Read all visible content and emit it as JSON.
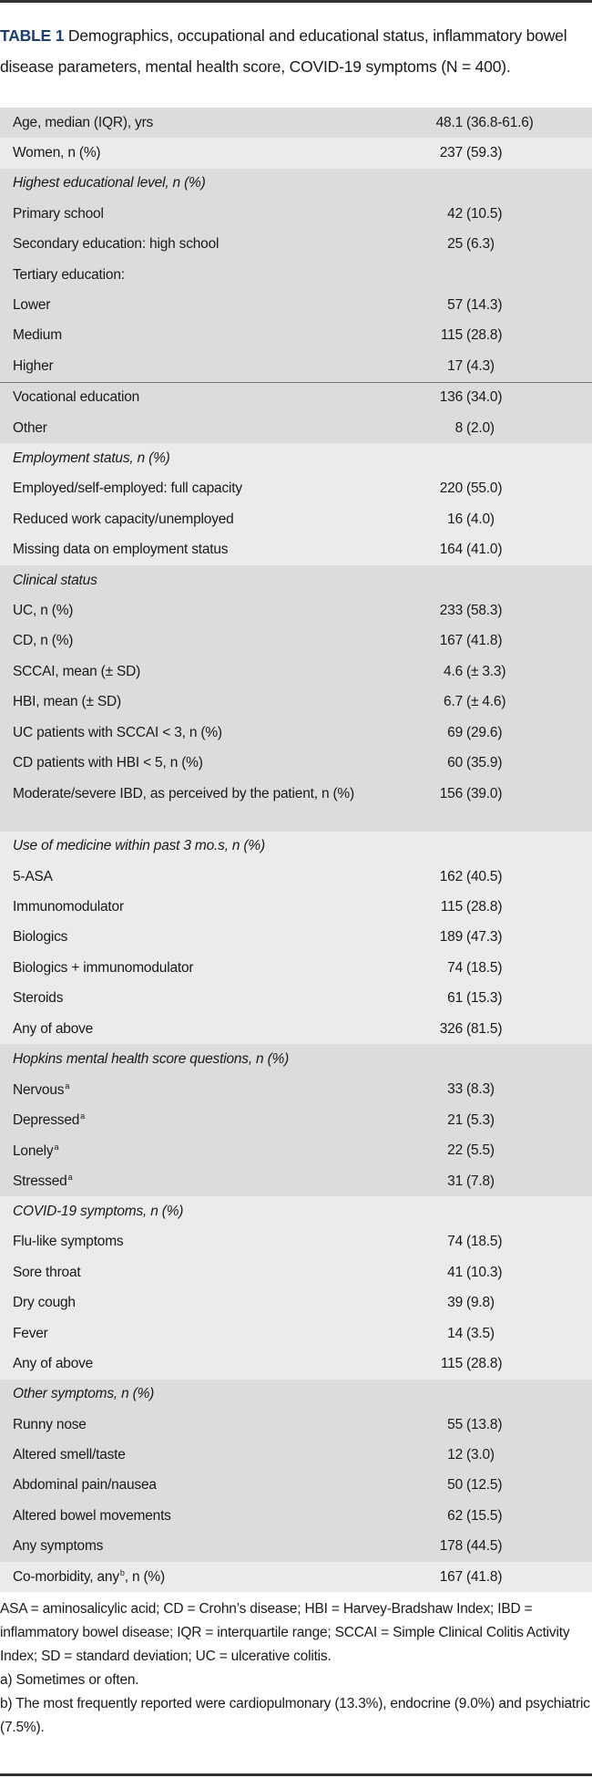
{
  "caption": {
    "label": "TABLE 1",
    "text": " Demographics, occupational and educational status, inflammatory bowel disease parameters, mental health score, COVID-19 symptoms (N = 400)."
  },
  "colors": {
    "title": "#1f3f72",
    "shade_dark": "#dcdcdc",
    "shade_light": "#ebebeb"
  },
  "sections": [
    {
      "shade": "dark",
      "rows": [
        {
          "label": "Age, median (IQR), yrs",
          "n": "48.1",
          "rest": "(36.8-61.6)"
        }
      ]
    },
    {
      "shade": "light",
      "rows": [
        {
          "label": "Women, n (%)",
          "n": "237",
          "rest": "(59.3)"
        }
      ]
    },
    {
      "shade": "dark",
      "rows": [
        {
          "label": "Highest educational level, n (%)",
          "italic": true
        },
        {
          "label": "Primary school",
          "n": "42",
          "rest": "(10.5)"
        },
        {
          "label": "Secondary education: high school",
          "n": "25",
          "rest": "(6.3)"
        },
        {
          "label": "Tertiary education:"
        },
        {
          "label": "Lower",
          "n": "57",
          "rest": "(14.3)"
        },
        {
          "label": "Medium",
          "n": "115",
          "rest": "(28.8)"
        },
        {
          "label": "Higher",
          "n": "17",
          "rest": "(4.3)"
        },
        {
          "label": "Vocational education",
          "n": "136",
          "rest": "(34.0)",
          "divider": true
        },
        {
          "label": "Other",
          "n": "8",
          "rest": "(2.0)"
        }
      ]
    },
    {
      "shade": "light",
      "rows": [
        {
          "label": "Employment status, n (%)",
          "italic": true
        },
        {
          "label": "Employed/self-employed: full capacity",
          "n": "220",
          "rest": "(55.0)"
        },
        {
          "label": "Reduced work capacity/unemployed",
          "n": "16",
          "rest": "(4.0)"
        },
        {
          "label": "Missing data on employment status",
          "n": "164",
          "rest": "(41.0)"
        }
      ]
    },
    {
      "shade": "dark",
      "rows": [
        {
          "label": "Clinical status",
          "italic": true
        },
        {
          "label": "UC, n (%)",
          "n": "233",
          "rest": "(58.3)"
        },
        {
          "label": "CD, n (%)",
          "n": "167",
          "rest": "(41.8)"
        },
        {
          "label": "SCCAI, mean (± SD)",
          "n": "4.6",
          "rest": "(± 3.3)"
        },
        {
          "label": "HBI, mean (± SD)",
          "n": "6.7",
          "rest": "(± 4.6)"
        },
        {
          "label": "UC patients with SCCAI < 3, n (%)",
          "n": "69",
          "rest": "(29.6)"
        },
        {
          "label": "CD patients with HBI < 5, n (%)",
          "n": "60",
          "rest": "(35.9)"
        },
        {
          "label": "Moderate/severe IBD, as perceived by the patient, n (%)",
          "n": "156",
          "rest": "(39.0)",
          "multi": true
        }
      ]
    },
    {
      "shade": "light",
      "rows": [
        {
          "label": "Use of medicine within past 3 mo.s, n (%)",
          "italic": true
        },
        {
          "label": "5-ASA",
          "n": "162",
          "rest": "(40.5)"
        },
        {
          "label": "Immunomodulator",
          "n": "115",
          "rest": "(28.8)"
        },
        {
          "label": "Biologics",
          "n": "189",
          "rest": "(47.3)"
        },
        {
          "label": "Biologics + immunomodulator",
          "n": "74",
          "rest": "(18.5)"
        },
        {
          "label": "Steroids",
          "n": "61",
          "rest": "(15.3)"
        },
        {
          "label": "Any of above",
          "n": "326",
          "rest": "(81.5)"
        }
      ]
    },
    {
      "shade": "dark",
      "rows": [
        {
          "label": "Hopkins mental health score questions, n (%)",
          "italic": true
        },
        {
          "label": "Nervous",
          "sup": "a",
          "n": "33",
          "rest": "(8.3)"
        },
        {
          "label": "Depressed",
          "sup": "a",
          "n": "21",
          "rest": "(5.3)"
        },
        {
          "label": "Lonely",
          "sup": "a",
          "n": "22",
          "rest": "(5.5)"
        },
        {
          "label": "Stressed",
          "sup": "a",
          "n": "31",
          "rest": "(7.8)"
        }
      ]
    },
    {
      "shade": "light",
      "rows": [
        {
          "label": "COVID-19 symptoms, n (%)",
          "italic": true
        },
        {
          "label": "Flu-like symptoms",
          "n": "74",
          "rest": "(18.5)"
        },
        {
          "label": "Sore throat",
          "n": "41",
          "rest": "(10.3)"
        },
        {
          "label": "Dry cough",
          "n": "39",
          "rest": "(9.8)"
        },
        {
          "label": "Fever",
          "n": "14",
          "rest": "(3.5)"
        },
        {
          "label": "Any of above",
          "n": "115",
          "rest": "(28.8)"
        }
      ]
    },
    {
      "shade": "dark",
      "rows": [
        {
          "label": "Other symptoms, n (%)",
          "italic": true
        },
        {
          "label": "Runny nose",
          "n": "55",
          "rest": "(13.8)"
        },
        {
          "label": "Altered smell/taste",
          "n": "12",
          "rest": "(3.0)"
        },
        {
          "label": "Abdominal pain/nausea",
          "n": "50",
          "rest": "(12.5)"
        },
        {
          "label": "Altered bowel movements",
          "n": "62",
          "rest": "(15.5)"
        },
        {
          "label": "Any symptoms",
          "n": "178",
          "rest": "(44.5)"
        }
      ]
    },
    {
      "shade": "light",
      "rows": [
        {
          "label": "Co-morbidity, any",
          "sup": "b",
          "label_after": ", n (%)",
          "n": "167",
          "rest": "(41.8)"
        }
      ]
    }
  ],
  "notes": {
    "abbreviations": "ASA = aminosalicylic acid; CD = Crohn’s disease; HBI = Harvey-Bradshaw Index; IBD = inflammatory bowel disease; IQR = interquartile range; SCCAI = Simple Clinical Colitis Activity Index; SD = standard deviation; UC = ulcerative colitis.",
    "a": "a) Sometimes or often.",
    "b": "b) The most frequently reported were cardiopulmonary (13.3%), endocrine (9.0%) and psychiatric (7.5%)."
  }
}
